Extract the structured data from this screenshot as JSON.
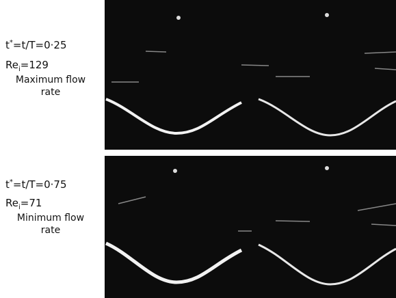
{
  "panels": [
    {
      "time": {
        "base": "t",
        "sup": "*",
        "rest": "=t/T=0·25"
      },
      "reynolds": {
        "base": "Re",
        "sub": "i",
        "rest": "=129"
      },
      "caption": [
        "Maximum flow",
        "rate"
      ]
    },
    {
      "time": {
        "base": "t",
        "sup": "*",
        "rest": "=t/T=0·75"
      },
      "reynolds": {
        "base": "Re",
        "sub": "i",
        "rest": "=71"
      },
      "caption": [
        "Minimum flow",
        "rate"
      ]
    }
  ]
}
